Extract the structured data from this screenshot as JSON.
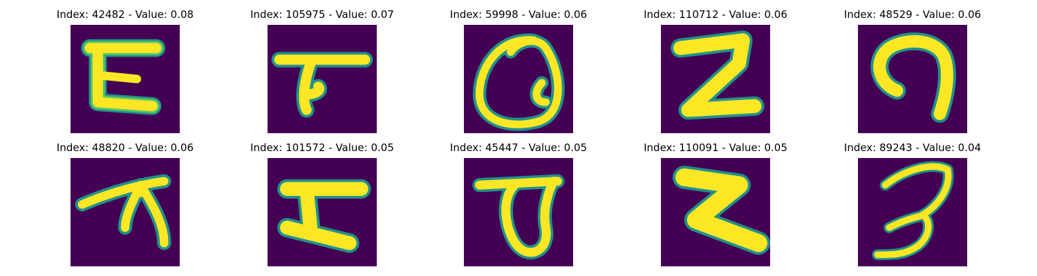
{
  "colors": {
    "background": "#440154",
    "stroke_edge": "#21918c",
    "stroke_mid": "#5ec962",
    "stroke_core": "#fde725"
  },
  "panels": [
    {
      "title": "Index: 42482 - Value: 0.08",
      "shape": "glyph-open-box"
    },
    {
      "title": "Index: 105975 - Value: 0.07",
      "shape": "glyph-t-hook"
    },
    {
      "title": "Index: 59998 - Value: 0.06",
      "shape": "glyph-loop-a"
    },
    {
      "title": "Index: 110712 - Value: 0.06",
      "shape": "glyph-z"
    },
    {
      "title": "Index: 48529 - Value: 0.06",
      "shape": "glyph-arch"
    },
    {
      "title": "Index: 48820 - Value: 0.06",
      "shape": "glyph-pi"
    },
    {
      "title": "Index: 101572 - Value: 0.05",
      "shape": "glyph-h-shape"
    },
    {
      "title": "Index: 45447 - Value: 0.05",
      "shape": "glyph-t-loop"
    },
    {
      "title": "Index: 110091 - Value: 0.05",
      "shape": "glyph-z-wide"
    },
    {
      "title": "Index: 89243 - Value: 0.04",
      "shape": "glyph-three"
    }
  ]
}
